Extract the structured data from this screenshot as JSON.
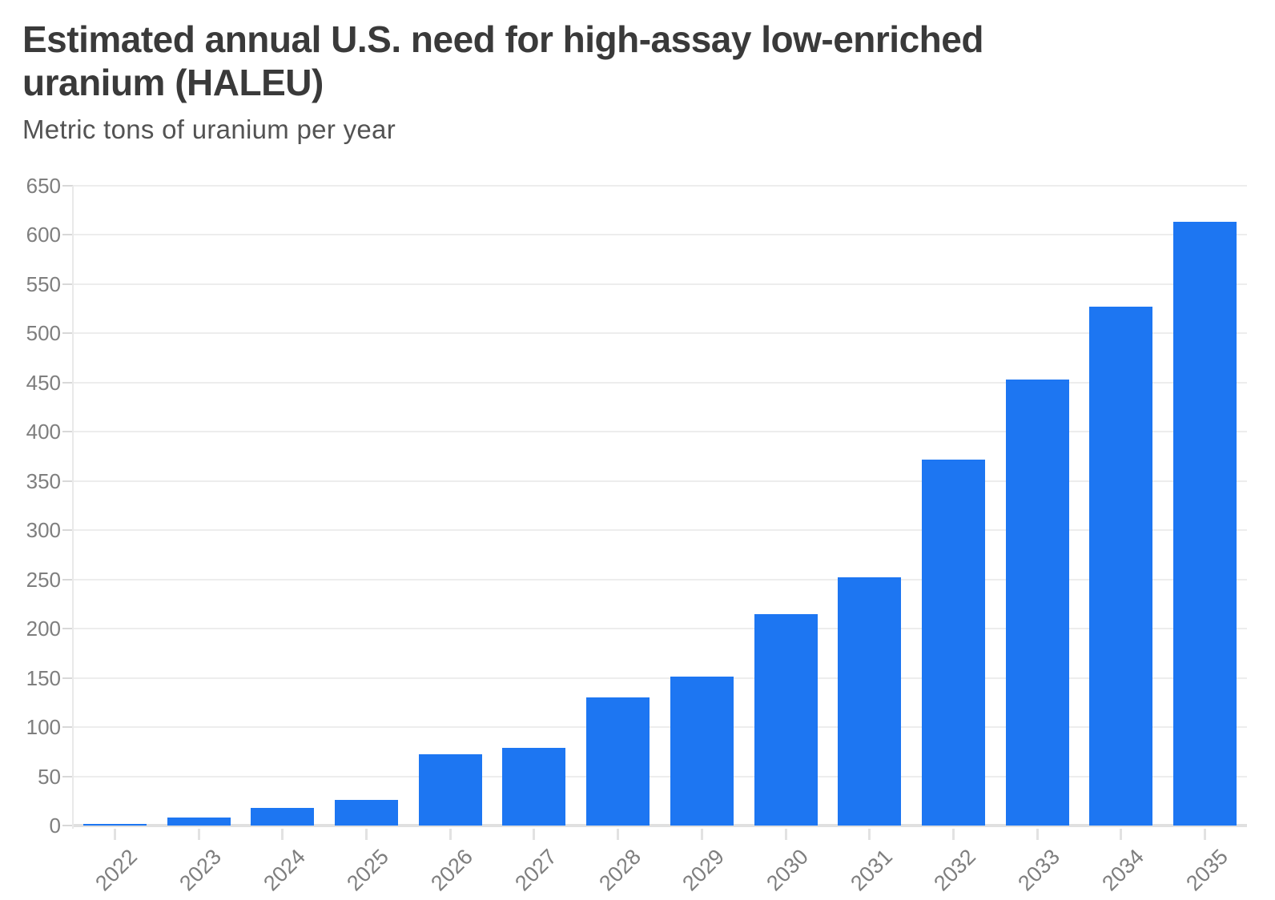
{
  "chart_data": {
    "type": "bar",
    "title": "Estimated annual U.S. need for high-assay low-enriched uranium (HALEU)",
    "subtitle": "Metric tons of uranium per year",
    "categories": [
      "2022",
      "2023",
      "2024",
      "2025",
      "2026",
      "2027",
      "2028",
      "2029",
      "2030",
      "2031",
      "2032",
      "2033",
      "2034",
      "2035"
    ],
    "values": [
      2,
      8,
      18,
      26,
      72,
      79,
      130,
      151,
      215,
      252,
      372,
      453,
      527,
      613
    ],
    "xlabel": "",
    "ylabel": "Metric tons of uranium per year",
    "ylim": [
      0,
      650
    ],
    "ytick_step": 50,
    "grid": "horizontal",
    "legend": "none",
    "bar_color": "#1d76f2",
    "axis_label_color": "#7e7e7e",
    "gridline_color": "#ededed"
  }
}
